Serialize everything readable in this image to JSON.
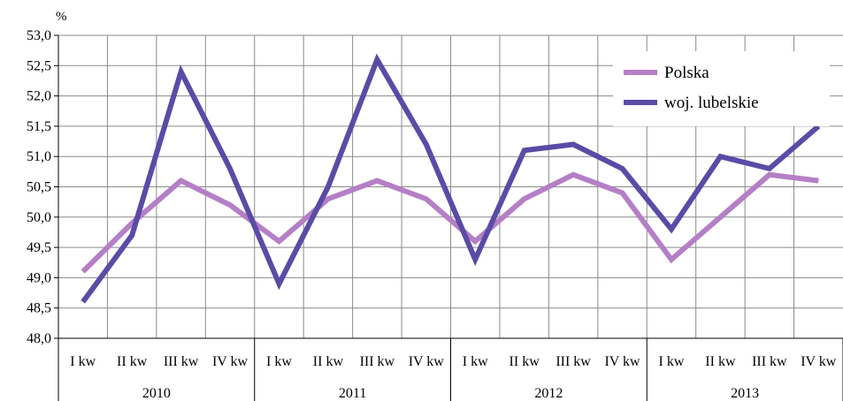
{
  "chart_data": {
    "type": "line",
    "title": "",
    "ylabel": "%",
    "ylim": [
      48.0,
      53.0
    ],
    "y_ticks": [
      "48,0",
      "48,5",
      "49,0",
      "49,5",
      "50,0",
      "50,5",
      "51,0",
      "51,5",
      "52,0",
      "52,5",
      "53,0"
    ],
    "categories": [
      "I kw",
      "II kw",
      "III kw",
      "IV kw",
      "I kw",
      "II kw",
      "III kw",
      "IV kw",
      "I kw",
      "II kw",
      "III kw",
      "IV kw",
      "I kw",
      "II kw",
      "III kw",
      "IV kw"
    ],
    "groups": [
      "2010",
      "2011",
      "2012",
      "2013"
    ],
    "grid": true,
    "legend_position": "top-right",
    "series": [
      {
        "name": "Polska",
        "color": "#b57fc6",
        "values": [
          49.1,
          49.9,
          50.6,
          50.2,
          49.6,
          50.3,
          50.6,
          50.3,
          49.6,
          50.3,
          50.7,
          50.4,
          49.3,
          50.0,
          50.7,
          50.6
        ]
      },
      {
        "name": "woj. lubelskie",
        "color": "#5a4ba6",
        "values": [
          48.6,
          49.7,
          52.4,
          50.8,
          48.9,
          50.5,
          52.6,
          51.2,
          49.3,
          51.1,
          51.2,
          50.8,
          49.8,
          51.0,
          50.8,
          51.5
        ]
      }
    ]
  }
}
